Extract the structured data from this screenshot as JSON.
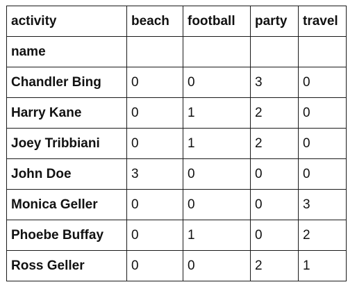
{
  "table": {
    "columns": [
      "activity",
      "beach",
      "football",
      "party",
      "travel"
    ],
    "index_name": "name",
    "rows": [
      {
        "name": "Chandler Bing",
        "values": [
          "0",
          "0",
          "3",
          "0"
        ]
      },
      {
        "name": "Harry Kane",
        "values": [
          "0",
          "1",
          "2",
          "0"
        ]
      },
      {
        "name": "Joey Tribbiani",
        "values": [
          "0",
          "1",
          "2",
          "0"
        ]
      },
      {
        "name": "John Doe",
        "values": [
          "3",
          "0",
          "0",
          "0"
        ]
      },
      {
        "name": "Monica Geller",
        "values": [
          "0",
          "0",
          "0",
          "3"
        ]
      },
      {
        "name": "Phoebe Buffay",
        "values": [
          "0",
          "1",
          "0",
          "2"
        ]
      },
      {
        "name": "Ross Geller",
        "values": [
          "0",
          "0",
          "2",
          "1"
        ]
      }
    ]
  }
}
